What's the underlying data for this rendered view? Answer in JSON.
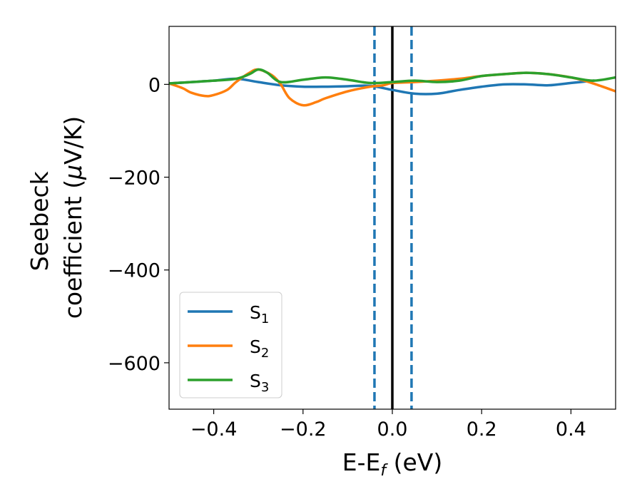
{
  "chart_data": {
    "type": "line",
    "title": "",
    "xlabel": "E-E",
    "xlabel_sub": "f",
    "xlabel_unit": " (eV)",
    "ylabel_line1": "Seebeck",
    "ylabel_line2": "coefficient  (",
    "ylabel_mu": "μ",
    "ylabel_unit": "V/K)",
    "xlim": [
      -0.5,
      0.5
    ],
    "ylim": [
      -700,
      125
    ],
    "xticks": [
      -0.4,
      -0.2,
      0.0,
      0.2,
      0.4
    ],
    "xtick_labels": [
      "−0.4",
      "−0.2",
      "0.0",
      "0.2",
      "0.4"
    ],
    "yticks": [
      0,
      -200,
      -400,
      -600
    ],
    "ytick_labels": [
      "0",
      "−200",
      "−400",
      "−600"
    ],
    "grid": false,
    "legend_position": "lower-left",
    "vlines": [
      {
        "x": 0.0,
        "color": "#000000",
        "style": "solid"
      },
      {
        "x": -0.04,
        "color": "#1f77b4",
        "style": "dashed"
      },
      {
        "x": 0.043,
        "color": "#1f77b4",
        "style": "dashed"
      }
    ],
    "series": [
      {
        "name_base": "S",
        "name_sub": "1",
        "color": "#1f77b4",
        "x": [
          -0.5,
          -0.45,
          -0.4,
          -0.35,
          -0.3,
          -0.25,
          -0.2,
          -0.15,
          -0.1,
          -0.05,
          0.0,
          0.05,
          0.1,
          0.15,
          0.2,
          0.25,
          0.3,
          0.35,
          0.4,
          0.45
        ],
        "y": [
          2,
          5,
          8,
          12,
          5,
          -2,
          -5,
          -5,
          -4,
          -3,
          -12,
          -20,
          -20,
          -12,
          -5,
          0,
          0,
          -2,
          3,
          8
        ]
      },
      {
        "name_base": "S",
        "name_sub": "2",
        "color": "#ff7f0e",
        "x": [
          -0.5,
          -0.47,
          -0.45,
          -0.42,
          -0.4,
          -0.37,
          -0.35,
          -0.32,
          -0.3,
          -0.27,
          -0.25,
          -0.23,
          -0.2,
          -0.17,
          -0.15,
          -0.1,
          -0.05,
          -0.02,
          0.0,
          0.05,
          0.1,
          0.15,
          0.2,
          0.25,
          0.3,
          0.35,
          0.4,
          0.43,
          0.45,
          0.48,
          0.5
        ],
        "y": [
          2,
          -8,
          -18,
          -25,
          -23,
          -12,
          5,
          25,
          32,
          20,
          0,
          -30,
          -45,
          -38,
          -30,
          -15,
          -5,
          -2,
          3,
          5,
          8,
          12,
          18,
          22,
          25,
          22,
          15,
          8,
          2,
          -8,
          -15
        ]
      },
      {
        "name_base": "S",
        "name_sub": "3",
        "color": "#2ca02c",
        "x": [
          -0.5,
          -0.45,
          -0.4,
          -0.35,
          -0.32,
          -0.3,
          -0.28,
          -0.25,
          -0.2,
          -0.15,
          -0.1,
          -0.05,
          0.0,
          0.05,
          0.1,
          0.15,
          0.2,
          0.25,
          0.3,
          0.35,
          0.4,
          0.45,
          0.5
        ],
        "y": [
          2,
          5,
          8,
          12,
          22,
          32,
          25,
          5,
          10,
          15,
          10,
          3,
          5,
          8,
          5,
          8,
          18,
          22,
          25,
          22,
          15,
          8,
          15
        ]
      }
    ]
  }
}
